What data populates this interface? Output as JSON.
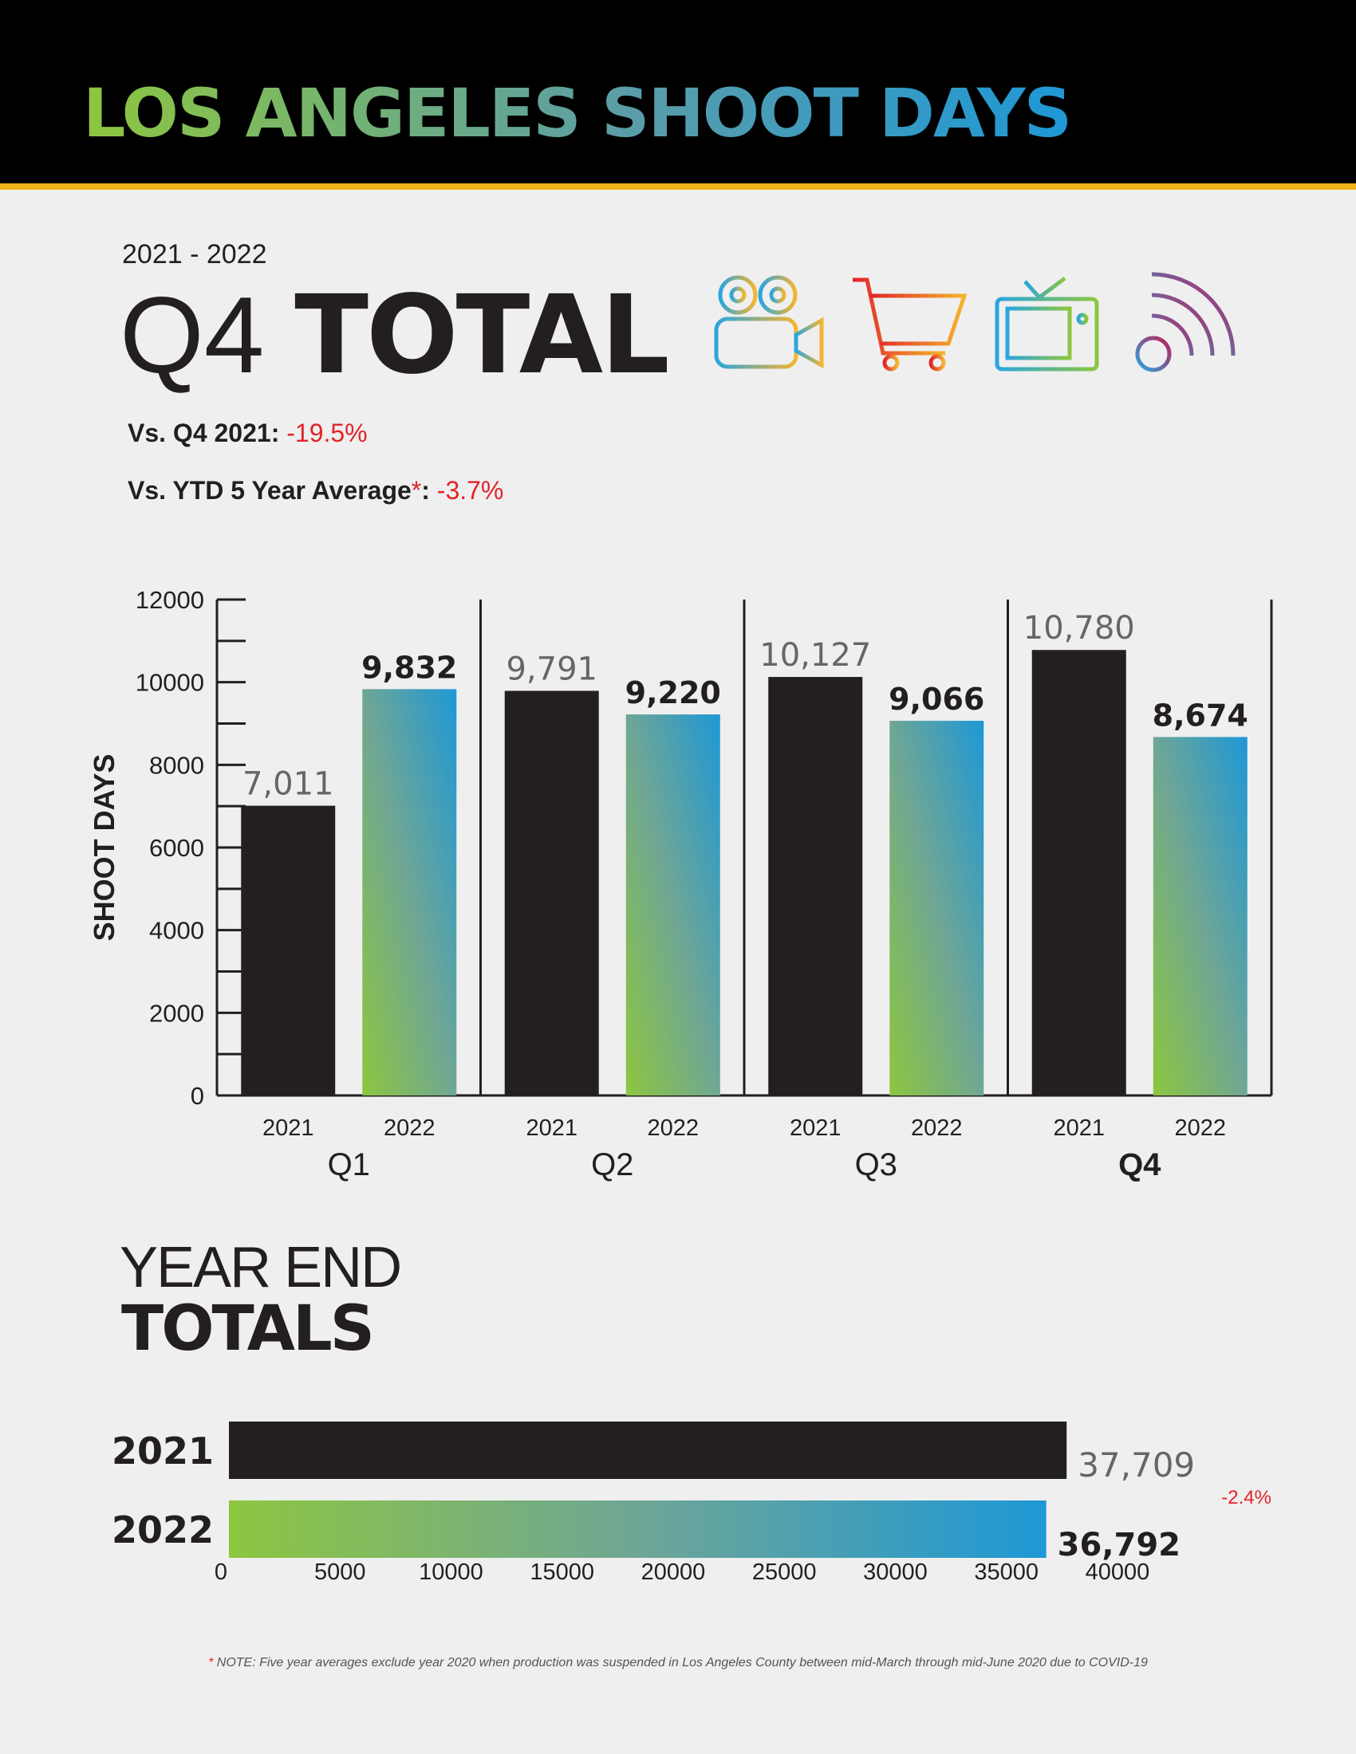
{
  "header": {
    "title": "LOS ANGELES SHOOT DAYS"
  },
  "summary": {
    "period": "2021 - 2022",
    "title_q": "Q4",
    "title_total": "TOTAL",
    "vs_q4_label": "Vs. Q4 2021:",
    "vs_q4_value": "-19.5%",
    "vs_avg_label": "Vs. YTD 5 Year Average",
    "vs_avg_star": "*",
    "vs_avg_colon": ":",
    "vs_avg_value": "-3.7%",
    "icons": [
      "film-camera-icon",
      "shopping-cart-icon",
      "television-icon",
      "broadcast-signal-icon"
    ]
  },
  "colors": {
    "bar_2021": "#231f20",
    "gradient_start": "#8dc63f",
    "gradient_end": "#1e98d6",
    "negative": "#e2232a",
    "accent_rule": "#f2b21c"
  },
  "chart_data": [
    {
      "type": "bar",
      "ylabel": "SHOOT DAYS",
      "ylim": [
        0,
        12000
      ],
      "yticks": [
        0,
        2000,
        4000,
        6000,
        8000,
        10000,
        12000
      ],
      "groups": [
        "Q1",
        "Q2",
        "Q3",
        "Q4"
      ],
      "series": [
        {
          "name": "2021",
          "values": [
            7011,
            9791,
            10127,
            10780
          ],
          "labels": [
            "7,011",
            "9,791",
            "10,127",
            "10,780"
          ]
        },
        {
          "name": "2022",
          "values": [
            9832,
            9220,
            9066,
            8674
          ],
          "labels": [
            "9,832",
            "9,220",
            "9,066",
            "8,674"
          ]
        }
      ]
    },
    {
      "type": "bar",
      "orientation": "horizontal",
      "title_line1": "YEAR END",
      "title_line2": "TOTALS",
      "categories": [
        "2021",
        "2022"
      ],
      "values": [
        37709,
        36792
      ],
      "labels": [
        "37,709",
        "36,792"
      ],
      "change": "-2.4%",
      "xlim": [
        0,
        40000
      ],
      "xticks": [
        0,
        5000,
        10000,
        15000,
        20000,
        25000,
        30000,
        35000,
        40000
      ]
    }
  ],
  "footnote": {
    "star": "*",
    "text": " NOTE: Five year averages exclude year 2020 when production was suspended in Los Angeles County between mid-March through mid-June 2020 due to COVID-19"
  }
}
